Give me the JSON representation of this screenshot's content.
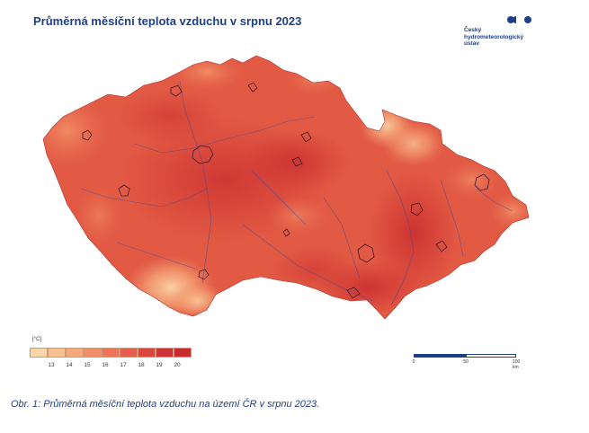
{
  "header": {
    "title": "Průměrná měsíční teplota vzduchu v srpnu 2023"
  },
  "logo": {
    "line1": "Český",
    "line2": "hydrometeorologický",
    "line3": "ústav",
    "icon": "chmi-dots-icon",
    "color": "#1f3f84"
  },
  "legend": {
    "unit": "[°C]",
    "ticks": [
      "13",
      "14",
      "15",
      "16",
      "17",
      "18",
      "19",
      "20"
    ],
    "colors": [
      "#fbd7a8",
      "#f8c08e",
      "#f5a97a",
      "#f19068",
      "#ec7657",
      "#e45e49",
      "#da463c",
      "#cf3233",
      "#c82a2d"
    ]
  },
  "scalebar": {
    "labels": [
      "0",
      "50",
      "100 km"
    ],
    "color": "#1f3f84"
  },
  "map": {
    "region": "Czech Republic",
    "colors": {
      "base": "#e25a44",
      "warm": "#cf3233",
      "cool": "#f19068",
      "mountain": "#f8c08e",
      "high_mountain": "#fbd7a8",
      "rivers": "#3a4aa0",
      "cities": "#3b1a2a"
    }
  },
  "caption": {
    "text": "Obr. 1: Průměrná měsíční teplota vzduchu na území ČR v srpnu 2023."
  }
}
